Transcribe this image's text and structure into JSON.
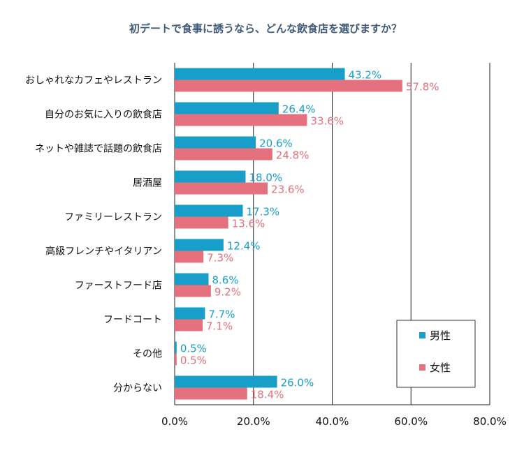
{
  "chart_data": {
    "type": "bar",
    "orientation": "horizontal",
    "title": "初デートで食事に誘うなら、どんな飲食店を選びますか？",
    "categories": [
      "おしゃれなカフェやレストラン",
      "自分のお気に入りの飲食店",
      "ネットや雑誌で話題の飲食店",
      "居酒屋",
      "ファミリーレストラン",
      "高級フレンチやイタリアン",
      "ファーストフード店",
      "フードコート",
      "その他",
      "分からない"
    ],
    "series": [
      {
        "name": "男性",
        "color": "#179fca",
        "values": [
          43.2,
          26.4,
          20.6,
          18.0,
          17.3,
          12.4,
          8.6,
          7.7,
          0.5,
          26.0
        ],
        "labels": [
          "43.2%",
          "26.4%",
          "20.6%",
          "18.0%",
          "17.3%",
          "12.4%",
          "8.6%",
          "7.7%",
          "0.5%",
          "26.0%"
        ]
      },
      {
        "name": "女性",
        "color": "#e5707e",
        "values": [
          57.8,
          33.6,
          24.8,
          23.6,
          13.6,
          7.3,
          9.2,
          7.1,
          0.5,
          18.4
        ],
        "labels": [
          "57.8%",
          "33.6%",
          "24.8%",
          "23.6%",
          "13.6%",
          "7.3%",
          "9.2%",
          "7.1%",
          "0.5%",
          "18.4%"
        ]
      }
    ],
    "xlim": [
      0,
      80
    ],
    "xticks": [
      0,
      20,
      40,
      60,
      80
    ],
    "xtick_labels": [
      "0.0%",
      "20.0%",
      "40.0%",
      "60.0%",
      "80.0%"
    ],
    "grid": true,
    "legend_position": "bottom-right"
  }
}
